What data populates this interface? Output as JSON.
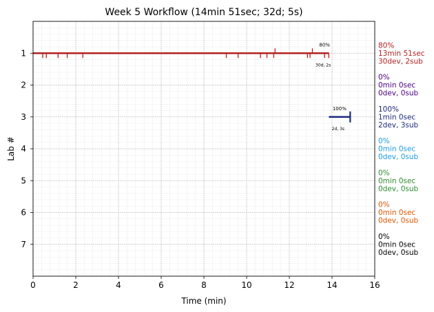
{
  "chart_data": {
    "type": "timeline",
    "title": "Week 5 Workflow (14min 51sec; 32d; 5s)",
    "xlabel": "Time (min)",
    "ylabel": "Lab #",
    "xlim": [
      0,
      16
    ],
    "ylim": [
      8,
      0
    ],
    "x_ticks": [
      0,
      2,
      4,
      6,
      8,
      10,
      12,
      14,
      16
    ],
    "y_ticks": [
      1,
      2,
      3,
      4,
      5,
      6,
      7
    ],
    "grid": true,
    "minor_grid": true,
    "labs": [
      {
        "lab": 1,
        "color": "#b22222",
        "summary": [
          "80%",
          "13min 51sec",
          "30dev, 2sub"
        ],
        "segment": [
          0,
          13.85
        ],
        "dev_ticks": [
          0.45,
          0.62,
          1.17,
          1.6,
          2.33,
          9.05,
          9.6,
          10.65,
          10.95,
          11.27,
          12.85,
          12.97,
          13.65,
          13.85
        ],
        "sub_ticks": [
          11.33,
          13.08
        ],
        "annot_top": "80%",
        "annot_bottom": "30d, 2s"
      },
      {
        "lab": 2,
        "color": "#4b0082",
        "summary": [
          "0%",
          "0min 0sec",
          "0dev, 0sub"
        ]
      },
      {
        "lab": 3,
        "color": "#1f2a7a",
        "summary": [
          "100%",
          "1min 0sec",
          "2dev, 3sub"
        ],
        "segment": [
          13.85,
          14.85
        ],
        "dev_ticks": [],
        "sub_ticks": [
          14.85
        ],
        "annot_top": "100%",
        "annot_bottom": "2d, 3s"
      },
      {
        "lab": 4,
        "color": "#1e9be0",
        "summary": [
          "0%",
          "0min 0sec",
          "0dev, 0sub"
        ]
      },
      {
        "lab": 5,
        "color": "#2e8b2e",
        "summary": [
          "0%",
          "0min 0sec",
          "0dev, 0sub"
        ]
      },
      {
        "lab": 6,
        "color": "#dd5500",
        "summary": [
          "0%",
          "0min 0sec",
          "0dev, 0sub"
        ]
      },
      {
        "lab": 7,
        "color": "#000000",
        "summary": [
          "0%",
          "0min 0sec",
          "0dev, 0sub"
        ]
      }
    ]
  }
}
